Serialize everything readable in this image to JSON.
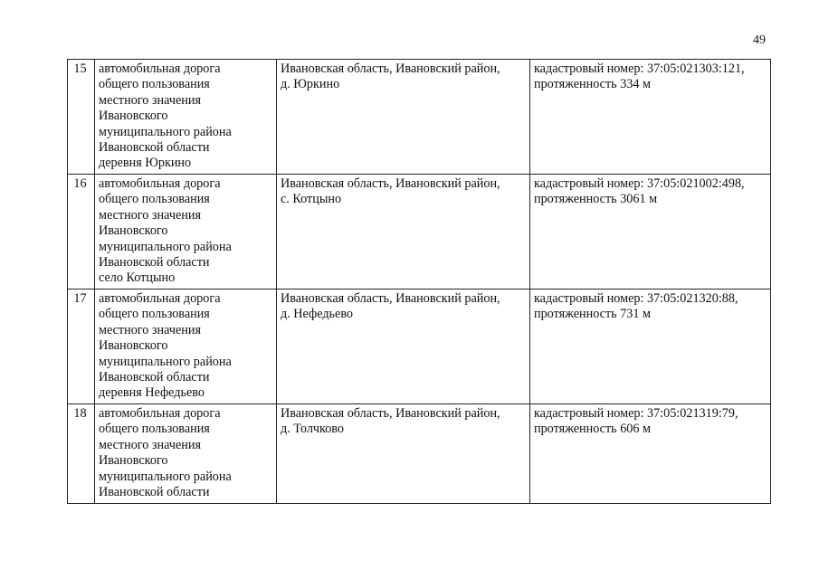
{
  "page_number": "49",
  "rows": [
    {
      "number": "15",
      "name_lines": [
        "автомобильная дорога",
        "общего пользования",
        "местного значения",
        "Ивановского",
        "муниципального района",
        "Ивановской области",
        "деревня Юркино"
      ],
      "address_lines": [
        "Ивановская область, Ивановский район,",
        "д. Юркино"
      ],
      "info_lines": [
        "кадастровый номер: 37:05:021303:121,",
        "протяженность 334 м"
      ]
    },
    {
      "number": "16",
      "name_lines": [
        "автомобильная дорога",
        "общего пользования",
        "местного значения",
        "Ивановского",
        "муниципального района",
        "Ивановской области",
        "село Котцыно"
      ],
      "address_lines": [
        "Ивановская область, Ивановский район,",
        "с. Котцыно"
      ],
      "info_lines": [
        "кадастровый номер: 37:05:021002:498,",
        "протяженность 3061 м"
      ]
    },
    {
      "number": "17",
      "name_lines": [
        "автомобильная дорога",
        "общего пользования",
        "местного значения",
        "Ивановского",
        "муниципального района",
        "Ивановской области",
        "деревня Нефедьево"
      ],
      "address_lines": [
        "Ивановская область, Ивановский район,",
        "д. Нефедьево"
      ],
      "info_lines": [
        "кадастровый номер: 37:05:021320:88,",
        "протяженность 731 м"
      ]
    },
    {
      "number": "18",
      "name_lines": [
        "автомобильная дорога",
        "общего пользования",
        "местного значения",
        "Ивановского",
        "муниципального района",
        "Ивановской области"
      ],
      "address_lines": [
        "Ивановская область, Ивановский район,",
        "д. Толчково"
      ],
      "info_lines": [
        "кадастровый номер: 37:05:021319:79,",
        "протяженность 606 м"
      ]
    }
  ]
}
